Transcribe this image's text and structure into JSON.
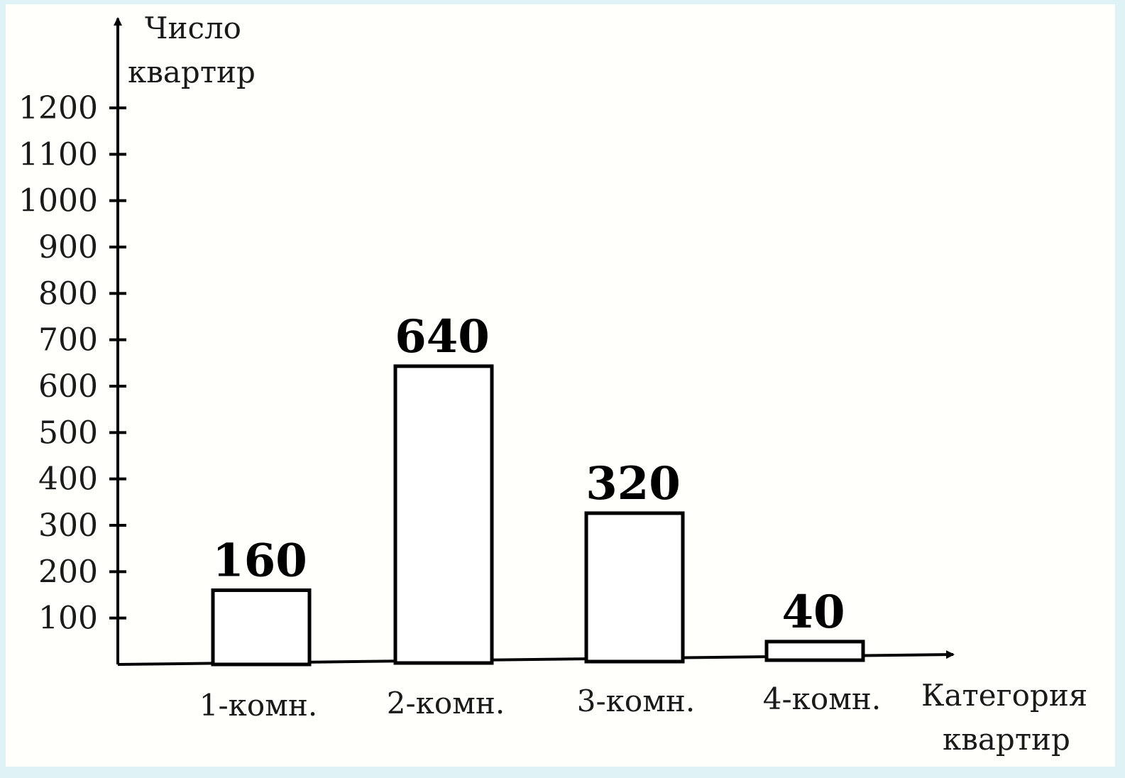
{
  "chart_data": {
    "type": "bar",
    "ylabel_lines": [
      "Число",
      "квартир"
    ],
    "xlabel_lines": [
      "Категория",
      "квартир"
    ],
    "categories": [
      "1-комн.",
      "2-комн.",
      "3-комн.",
      "4-комн."
    ],
    "values": [
      160,
      640,
      320,
      40
    ],
    "data_labels": [
      "160",
      "640",
      "320",
      "40"
    ],
    "yticks": [
      100,
      200,
      300,
      400,
      500,
      600,
      700,
      800,
      900,
      1000,
      1100,
      1200
    ],
    "ylim": [
      0,
      1200
    ],
    "grid": false
  }
}
